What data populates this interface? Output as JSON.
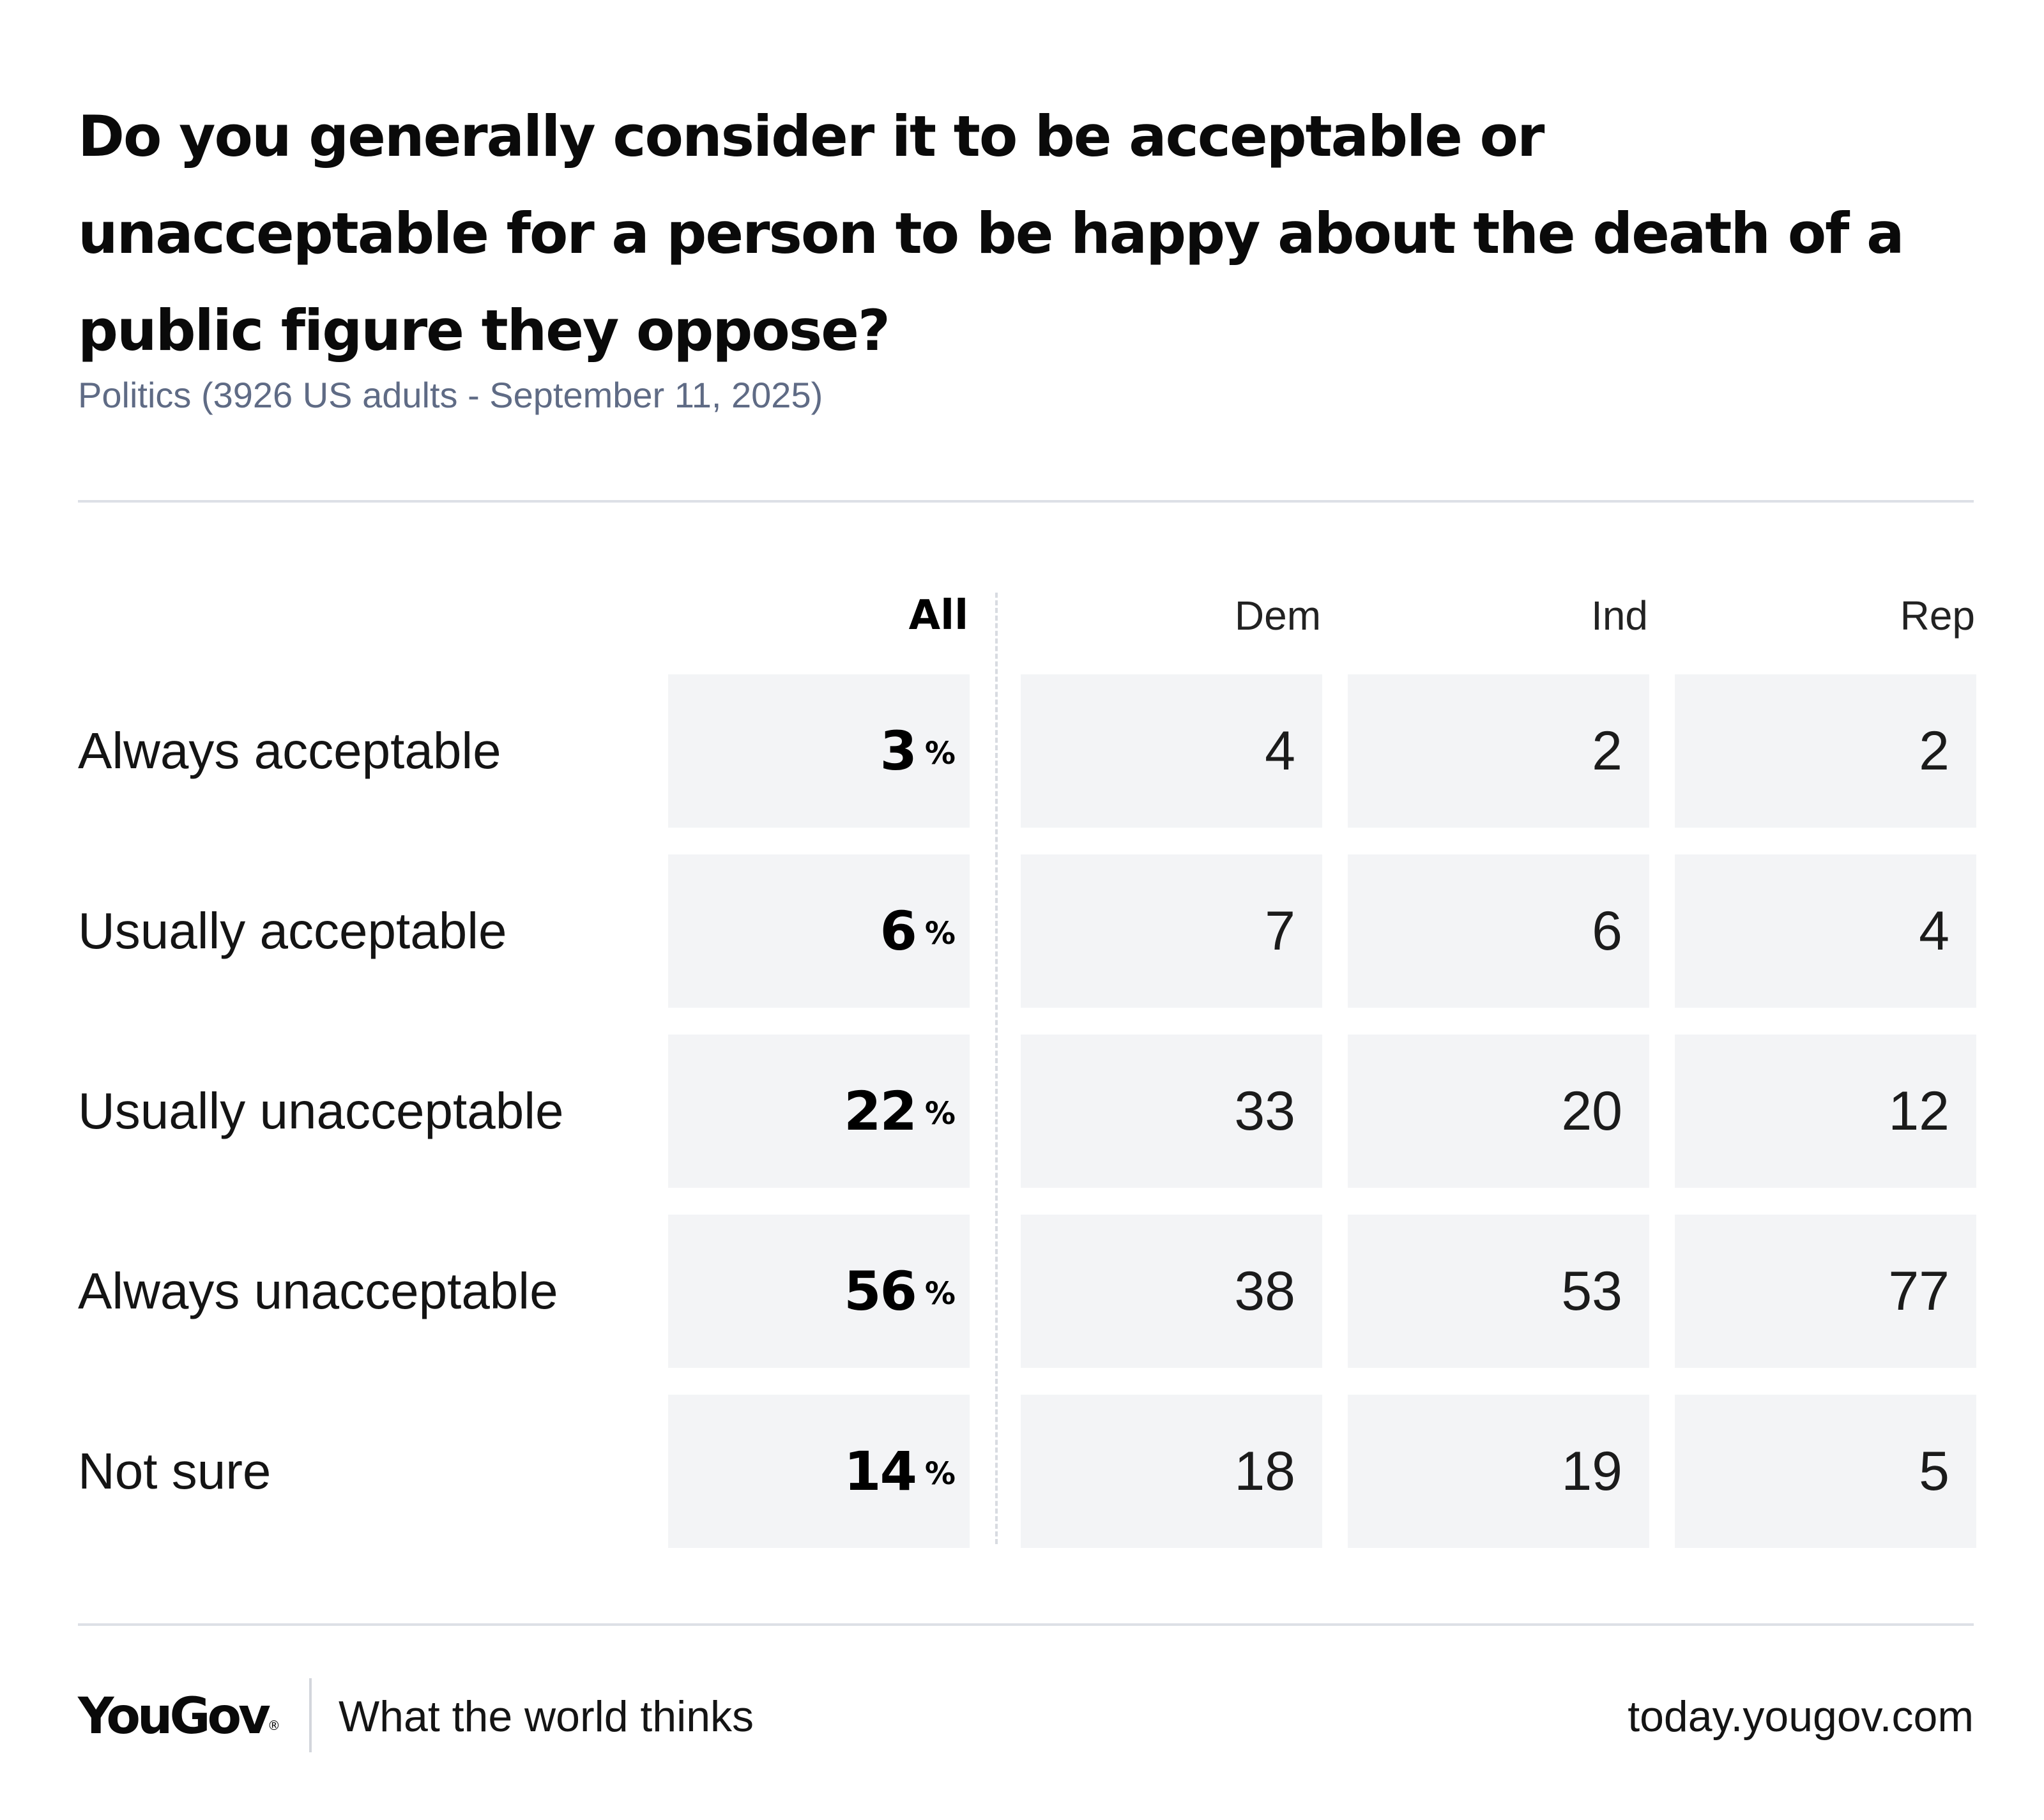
{
  "title": "Do you generally consider it to be acceptable or unacceptable for a person to be happy about the death of a public figure they oppose?",
  "subtitle": "Politics (3926 US adults - September 11, 2025)",
  "chart_data": {
    "type": "table",
    "title": "Do you generally consider it to be acceptable or unacceptable for a person to be happy about the death of a public figure they oppose?",
    "columns": [
      "All",
      "Dem",
      "Ind",
      "Rep"
    ],
    "unit": "%",
    "rows": [
      {
        "label": "Always acceptable",
        "values": [
          3,
          4,
          2,
          2
        ]
      },
      {
        "label": "Usually acceptable",
        "values": [
          6,
          7,
          6,
          4
        ]
      },
      {
        "label": "Usually unacceptable",
        "values": [
          22,
          33,
          20,
          12
        ]
      },
      {
        "label": "Always unacceptable",
        "values": [
          56,
          38,
          53,
          77
        ]
      },
      {
        "label": "Not sure",
        "values": [
          14,
          18,
          19,
          5
        ]
      }
    ]
  },
  "footer": {
    "logo": "YouGov",
    "logo_mark": "®",
    "tagline": "What the world thinks",
    "url": "today.yougov.com"
  },
  "colors": {
    "cell_background": "#f3f4f6",
    "subtitle": "#5f6b85",
    "rule": "#dde0e6",
    "text": "#111111"
  }
}
